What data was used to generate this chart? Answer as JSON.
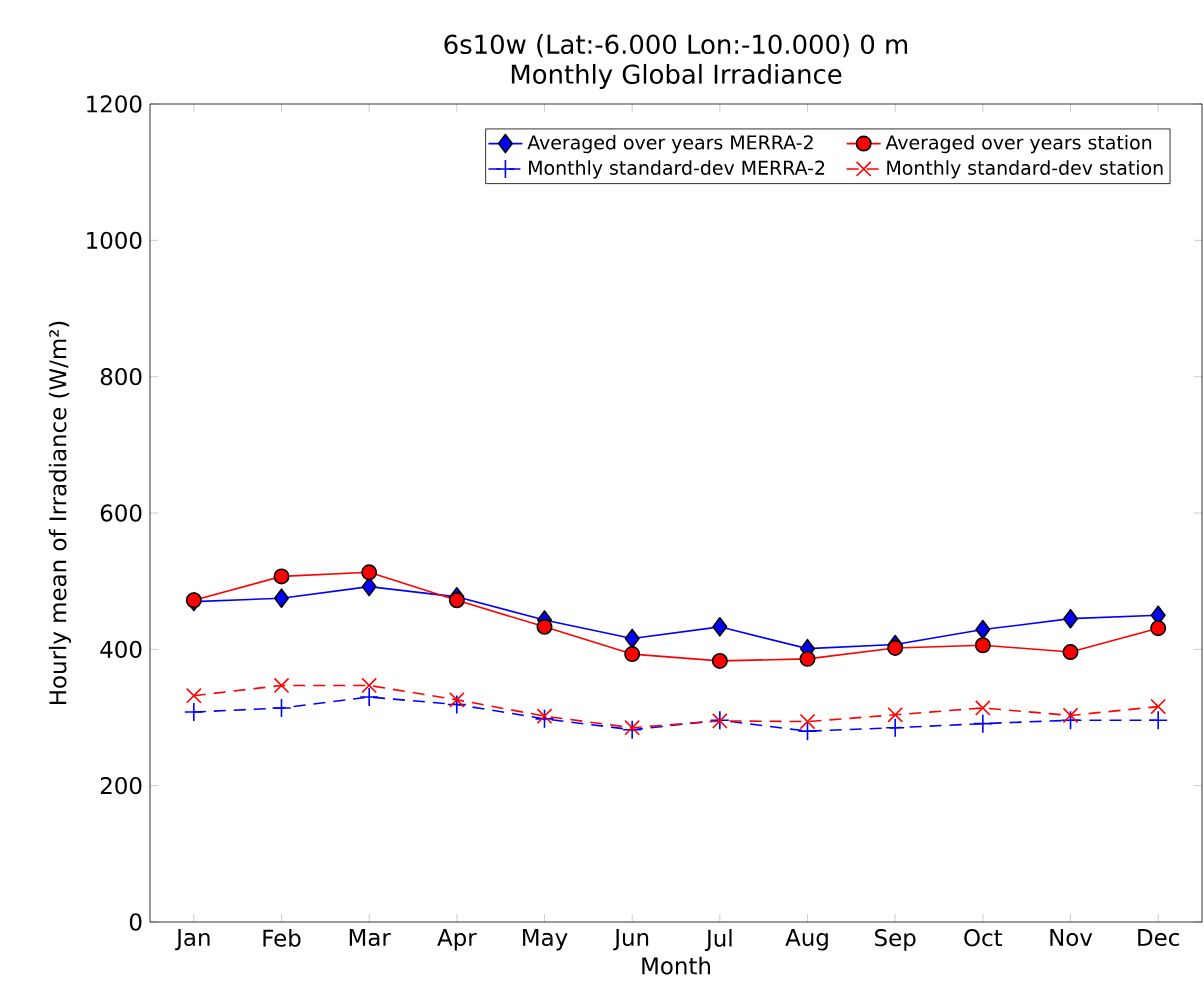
{
  "chart_data": {
    "type": "line",
    "title": "6s10w (Lat:-6.000 Lon:-10.000) 0 m",
    "subtitle": "Monthly Global Irradiance",
    "xlabel": "Month",
    "ylabel": "Hourly mean of Irradiance (W/m²)",
    "categories": [
      "Jan",
      "Feb",
      "Mar",
      "Apr",
      "May",
      "Jun",
      "Jul",
      "Aug",
      "Sep",
      "Oct",
      "Nov",
      "Dec"
    ],
    "ylim": [
      0,
      1200
    ],
    "yticks": [
      0,
      200,
      400,
      600,
      800,
      1000,
      1200
    ],
    "grid": false,
    "legend": "top right",
    "series": [
      {
        "name": "Averaged over years MERRA-2",
        "color": "#0000ff",
        "marker": "diamond",
        "line_style": "solid",
        "values": [
          470,
          475,
          492,
          477,
          443,
          416,
          433,
          401,
          407,
          429,
          445,
          450
        ]
      },
      {
        "name": "Averaged over years station",
        "color": "#ff0000",
        "marker": "circle",
        "line_style": "solid",
        "values": [
          472,
          507,
          513,
          472,
          433,
          393,
          383,
          386,
          402,
          406,
          396,
          431
        ]
      },
      {
        "name": "Monthly standard-dev MERRA-2",
        "color": "#0000ff",
        "marker": "plus",
        "line_style": "dashed",
        "values": [
          308,
          314,
          330,
          319,
          298,
          282,
          296,
          280,
          285,
          291,
          296,
          296
        ]
      },
      {
        "name": "Monthly standard-dev station",
        "color": "#ff0000",
        "marker": "cross",
        "line_style": "dashed",
        "values": [
          332,
          347,
          347,
          326,
          302,
          285,
          295,
          294,
          304,
          314,
          303,
          316
        ]
      }
    ]
  }
}
